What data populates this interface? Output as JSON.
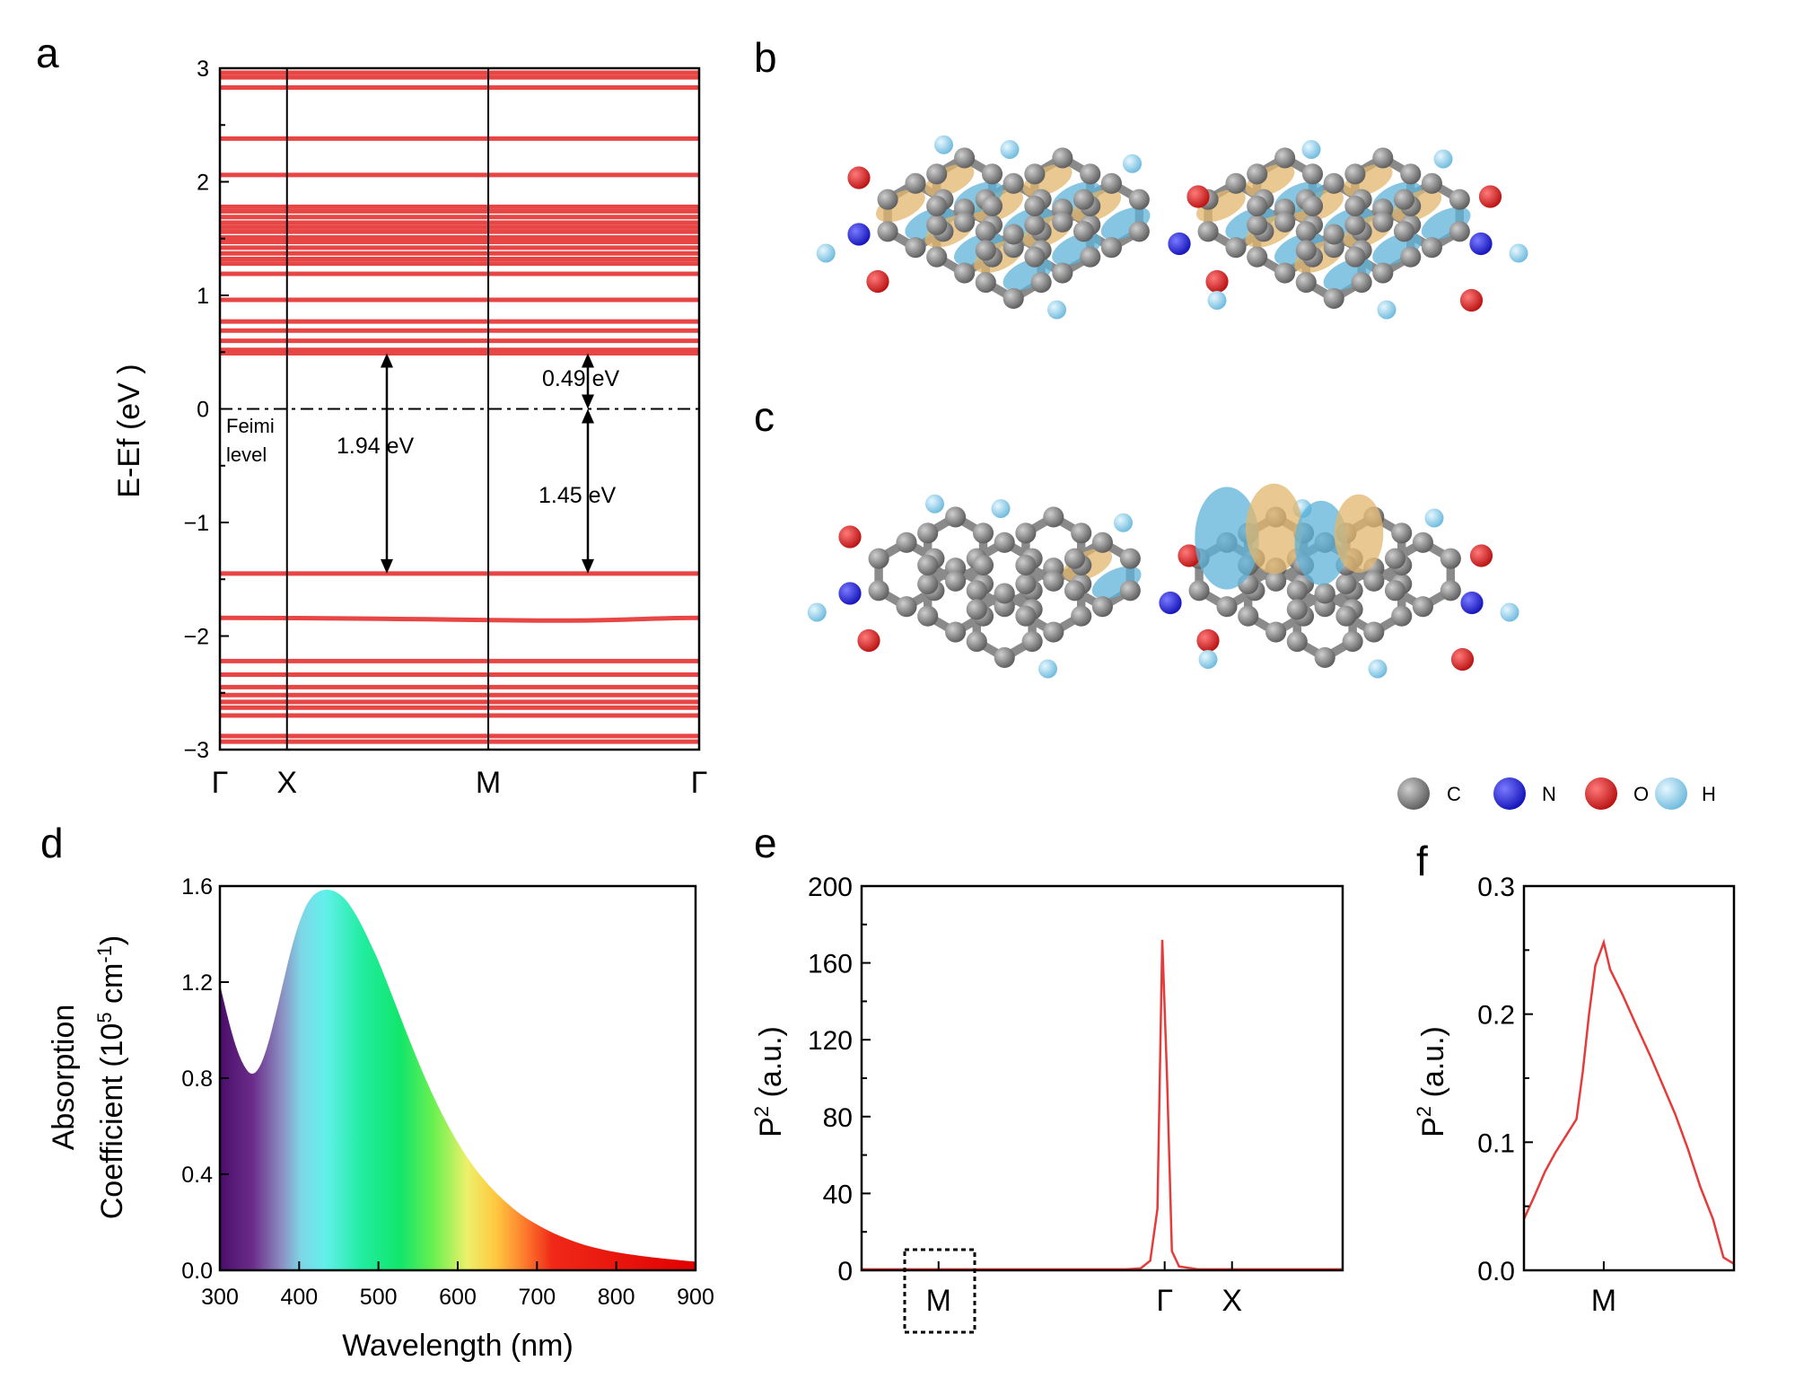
{
  "panels": {
    "a": "a",
    "b": "b",
    "c": "c",
    "d": "d",
    "e": "e",
    "f": "f"
  },
  "colors": {
    "band": "#e84545",
    "line": "#e63b3b",
    "carbon": "#7d7d7d",
    "nitrogen": "#2626d9",
    "oxygen": "#d91f1f",
    "hydrogen": "#8cd0ec",
    "orbital_blue": "#5db3d8",
    "orbital_gold": "#e1b66c"
  },
  "legend_atoms": [
    {
      "label": "C",
      "color": "#707070"
    },
    {
      "label": "N",
      "color": "#2020d8"
    },
    {
      "label": "O",
      "color": "#d41a1a"
    },
    {
      "label": "H",
      "color": "#8ccfeb"
    }
  ],
  "chart_data": [
    {
      "panel": "a",
      "type": "line",
      "ylabel": "E-Ef (eV )",
      "ylim": [
        -3,
        3
      ],
      "yticks": [
        "3",
        "2",
        "1",
        "0",
        "−1",
        "−2",
        "−3"
      ],
      "ytick_values": [
        3,
        2,
        1,
        0,
        -1,
        -2,
        -3
      ],
      "kpath_labels": [
        "Γ",
        "X",
        "M",
        "Γ"
      ],
      "kpath_positions": [
        0,
        0.14,
        0.56,
        1.0
      ],
      "fermi_label": [
        "Feimi",
        "level"
      ],
      "annotations": [
        {
          "text": "1.94 eV",
          "from": -1.45,
          "to": 0.49
        },
        {
          "text": "0.49 eV",
          "from": 0,
          "to": 0.49
        },
        {
          "text": "1.45 eV",
          "from": -1.45,
          "to": 0
        }
      ],
      "bands": [
        2.96,
        2.92,
        2.83,
        2.38,
        2.06,
        1.78,
        1.74,
        1.69,
        1.64,
        1.6,
        1.56,
        1.51,
        1.47,
        1.42,
        1.37,
        1.32,
        1.28,
        1.19,
        0.96,
        0.77,
        0.69,
        0.6,
        0.52,
        0.49,
        -1.45,
        -1.84,
        -2.22,
        -2.34,
        -2.45,
        -2.52,
        -2.58,
        -2.63,
        -2.7,
        -2.88,
        -2.93
      ]
    },
    {
      "panel": "d",
      "type": "area",
      "xlabel": "Wavelength (nm)",
      "ylabel_line1": "Absorption",
      "ylabel_line2": "Coefficient (10",
      "ylabel_sup1": "5",
      "ylabel_mid": " cm",
      "ylabel_sup2": "-1",
      "ylabel_end": ")",
      "xlim": [
        300,
        900
      ],
      "ylim": [
        0,
        1.6
      ],
      "xticks": [
        "300",
        "400",
        "500",
        "600",
        "700",
        "800",
        "900"
      ],
      "xtick_values": [
        300,
        400,
        500,
        600,
        700,
        800,
        900
      ],
      "yticks": [
        "0.0",
        "0.4",
        "0.8",
        "1.2",
        "1.6"
      ],
      "ytick_values": [
        0,
        0.4,
        0.8,
        1.2,
        1.6
      ],
      "x": [
        300,
        310,
        320,
        330,
        340,
        350,
        360,
        370,
        380,
        390,
        400,
        410,
        420,
        430,
        440,
        450,
        460,
        470,
        480,
        490,
        500,
        520,
        540,
        560,
        580,
        600,
        620,
        640,
        660,
        680,
        700,
        720,
        740,
        760,
        780,
        800,
        830,
        860,
        900
      ],
      "y": [
        1.19,
        1.05,
        0.93,
        0.85,
        0.81,
        0.84,
        0.93,
        1.06,
        1.2,
        1.34,
        1.45,
        1.53,
        1.57,
        1.585,
        1.585,
        1.57,
        1.54,
        1.49,
        1.43,
        1.36,
        1.29,
        1.12,
        0.95,
        0.79,
        0.65,
        0.53,
        0.43,
        0.35,
        0.285,
        0.23,
        0.19,
        0.155,
        0.128,
        0.105,
        0.088,
        0.075,
        0.06,
        0.048,
        0.036
      ]
    },
    {
      "panel": "e",
      "type": "line",
      "ylabel_base": "P",
      "ylabel_sup": "2",
      "ylabel_unit": " (a.u.)",
      "ylim": [
        0,
        200
      ],
      "yticks": [
        "0",
        "40",
        "80",
        "120",
        "160",
        "200"
      ],
      "ytick_values": [
        0,
        40,
        80,
        120,
        160,
        200
      ],
      "xlabels": [
        "M",
        "Γ",
        "X"
      ],
      "xlabel_positions": [
        0.16,
        0.63,
        0.77
      ],
      "x": [
        0,
        0.1,
        0.2,
        0.3,
        0.4,
        0.5,
        0.55,
        0.58,
        0.6,
        0.615,
        0.625,
        0.635,
        0.645,
        0.66,
        0.7,
        0.8,
        0.9,
        1.0
      ],
      "y": [
        0.5,
        0.5,
        0.5,
        0.5,
        0.5,
        0.5,
        0.5,
        1,
        5,
        32,
        172,
        100,
        10,
        2,
        0.5,
        0.5,
        0.5,
        0.5
      ]
    },
    {
      "panel": "f",
      "type": "line",
      "ylabel_base": "P",
      "ylabel_sup": "2",
      "ylabel_unit": " (a.u.)",
      "ylim": [
        0,
        0.3
      ],
      "yticks": [
        "0.0",
        "0.1",
        "0.2",
        "0.3"
      ],
      "ytick_values": [
        0,
        0.1,
        0.2,
        0.3
      ],
      "xlabels": [
        "M"
      ],
      "xlabel_positions": [
        0.38
      ],
      "x": [
        0,
        0.05,
        0.1,
        0.15,
        0.2,
        0.25,
        0.28,
        0.31,
        0.34,
        0.38,
        0.41,
        0.47,
        0.53,
        0.6,
        0.66,
        0.72,
        0.78,
        0.84,
        0.9,
        0.95,
        1.0
      ],
      "y": [
        0.04,
        0.058,
        0.077,
        0.092,
        0.105,
        0.118,
        0.155,
        0.2,
        0.238,
        0.256,
        0.235,
        0.215,
        0.193,
        0.168,
        0.145,
        0.122,
        0.095,
        0.065,
        0.04,
        0.01,
        0.005
      ]
    }
  ]
}
